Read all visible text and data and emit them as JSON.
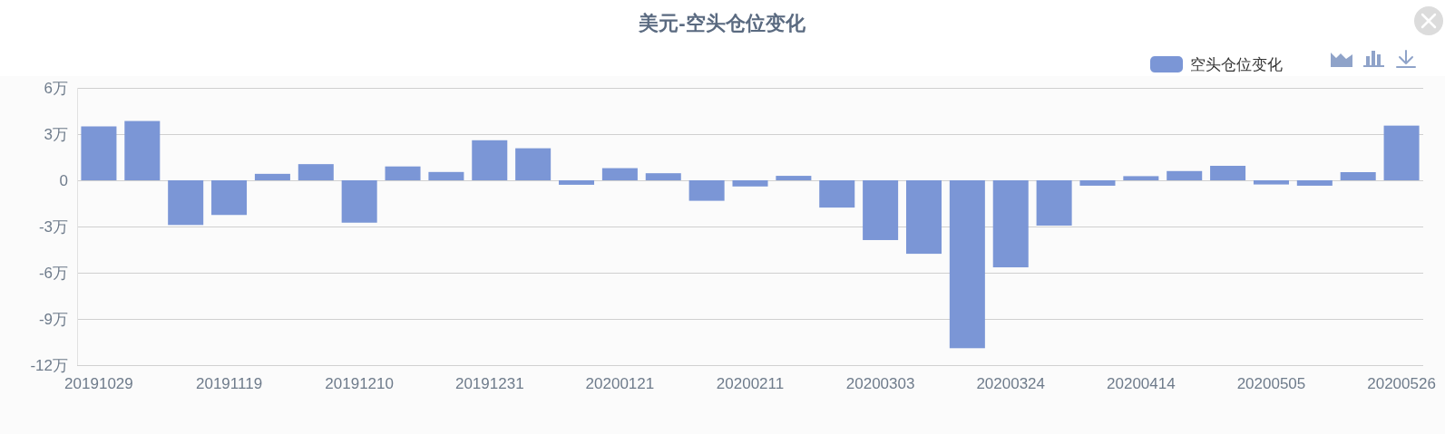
{
  "chart_data": {
    "type": "bar",
    "title": "美元-空头仓位变化",
    "categories": [
      "20191029",
      null,
      null,
      "20191119",
      null,
      null,
      "20191210",
      null,
      null,
      "20191231",
      null,
      null,
      "20200121",
      null,
      null,
      "20200211",
      null,
      null,
      "20200303",
      null,
      null,
      "20200324",
      null,
      null,
      "20200414",
      null,
      null,
      "20200505",
      null,
      null,
      "20200526"
    ],
    "series": [
      {
        "name": "空头仓位变化",
        "color": "#7b96d6",
        "values": [
          3.5,
          3.85,
          -2.9,
          -2.25,
          0.42,
          1.05,
          -2.75,
          0.9,
          0.54,
          2.6,
          2.08,
          -0.29,
          0.79,
          0.46,
          -1.33,
          -0.4,
          0.29,
          -1.77,
          -3.88,
          -4.77,
          -10.9,
          -5.65,
          -2.94,
          -0.35,
          0.27,
          0.6,
          0.94,
          -0.27,
          -0.35,
          0.53,
          3.55
        ]
      }
    ],
    "ylim": [
      -12,
      6
    ],
    "yticks": [
      {
        "value": 6,
        "label": "6万"
      },
      {
        "value": 3,
        "label": "3万"
      },
      0,
      {
        "value": -3,
        "label": "-3万"
      },
      {
        "value": -6,
        "label": "-6万"
      },
      {
        "value": -9,
        "label": "-9万"
      },
      {
        "value": -12,
        "label": "-12万"
      }
    ],
    "grid": "y",
    "legend": "top right"
  }
}
